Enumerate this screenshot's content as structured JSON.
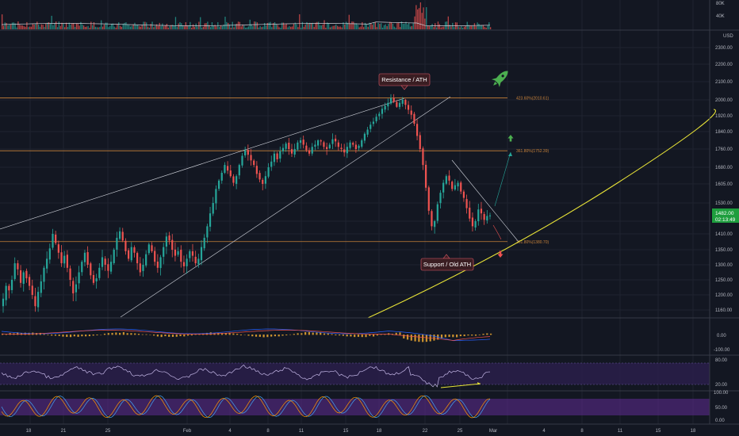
{
  "colors": {
    "background": "#131722",
    "up": "#26a69a",
    "down": "#ef5350",
    "fib": "#c8823a",
    "wedge": "#d1d4dc",
    "support_curve": "#e8e337",
    "current_price": "#1e9e3e",
    "callout_bg": "#3a1d22",
    "callout_border": "#e05b6a",
    "rocket": "#4caf50"
  },
  "icons": {
    "rocket": "rocket-icon",
    "arrow_up": "arrow-up-icon",
    "arrow_down": "arrow-down-icon"
  },
  "chart_data": {
    "type": "candlestick",
    "currency": "USD",
    "price_axis": {
      "ticks": [
        1160,
        1200,
        1250,
        1300,
        1350,
        1410,
        1460,
        1530,
        1605,
        1680,
        1760,
        1840,
        1920,
        2000,
        2100,
        2200,
        2300
      ]
    },
    "volume_axis": {
      "ticks": [
        "80K",
        "40K"
      ]
    },
    "date_ticks": [
      "18",
      "21",
      "25",
      "Feb",
      "4",
      "8",
      "11",
      "15",
      "18",
      "22",
      "25",
      "Mar",
      "4",
      "8",
      "11",
      "15",
      "18"
    ],
    "candles_close": [
      1190,
      1230,
      1215,
      1250,
      1305,
      1285,
      1240,
      1275,
      1255,
      1230,
      1200,
      1170,
      1210,
      1245,
      1290,
      1320,
      1355,
      1410,
      1375,
      1340,
      1305,
      1330,
      1290,
      1250,
      1205,
      1235,
      1275,
      1310,
      1340,
      1300,
      1265,
      1240,
      1255,
      1290,
      1325,
      1300,
      1280,
      1310,
      1350,
      1395,
      1420,
      1385,
      1345,
      1320,
      1360,
      1340,
      1305,
      1275,
      1300,
      1335,
      1370,
      1345,
      1310,
      1290,
      1325,
      1360,
      1400,
      1385,
      1350,
      1330,
      1345,
      1310,
      1295,
      1320,
      1345,
      1330,
      1305,
      1320,
      1360,
      1395,
      1440,
      1490,
      1530,
      1585,
      1620,
      1655,
      1690,
      1665,
      1640,
      1610,
      1640,
      1690,
      1730,
      1755,
      1735,
      1710,
      1690,
      1650,
      1625,
      1605,
      1640,
      1680,
      1705,
      1740,
      1715,
      1750,
      1765,
      1785,
      1760,
      1740,
      1760,
      1790,
      1800,
      1780,
      1755,
      1740,
      1770,
      1780,
      1800,
      1795,
      1770,
      1760,
      1780,
      1805,
      1795,
      1770,
      1760,
      1745,
      1770,
      1790,
      1780,
      1760,
      1775,
      1800,
      1830,
      1850,
      1875,
      1890,
      1915,
      1930,
      1955,
      1970,
      1985,
      2010,
      1990,
      1965,
      1985,
      2000,
      1975,
      1950,
      1925,
      1880,
      1820,
      1760,
      1690,
      1590,
      1500,
      1440,
      1460,
      1525,
      1570,
      1610,
      1640,
      1620,
      1585,
      1600,
      1610,
      1575,
      1550,
      1510,
      1470,
      1440,
      1460,
      1505,
      1490,
      1465,
      1480,
      1482
    ],
    "current_price": "1482.00",
    "countdown": "02:13:49",
    "fib_levels": [
      {
        "label": "423.60%(2010.61)",
        "value": 2010.61
      },
      {
        "label": "361.80%(1752.39)",
        "value": 1752.39
      },
      {
        "label": "261.80%(1380.70)",
        "value": 1380.7
      }
    ],
    "callouts": [
      {
        "text": "Resistance / ATH",
        "near_price": 2025
      },
      {
        "text": "Support / Old ATH",
        "near_price": 1380
      }
    ],
    "macd": {
      "axis_ticks": [
        "0.00",
        "-100.00"
      ]
    },
    "rsi": {
      "axis_ticks": [
        "80.00",
        "20.00"
      ]
    },
    "stoch": {
      "axis_ticks": [
        "100.00",
        "50.00",
        "0.00"
      ]
    }
  }
}
